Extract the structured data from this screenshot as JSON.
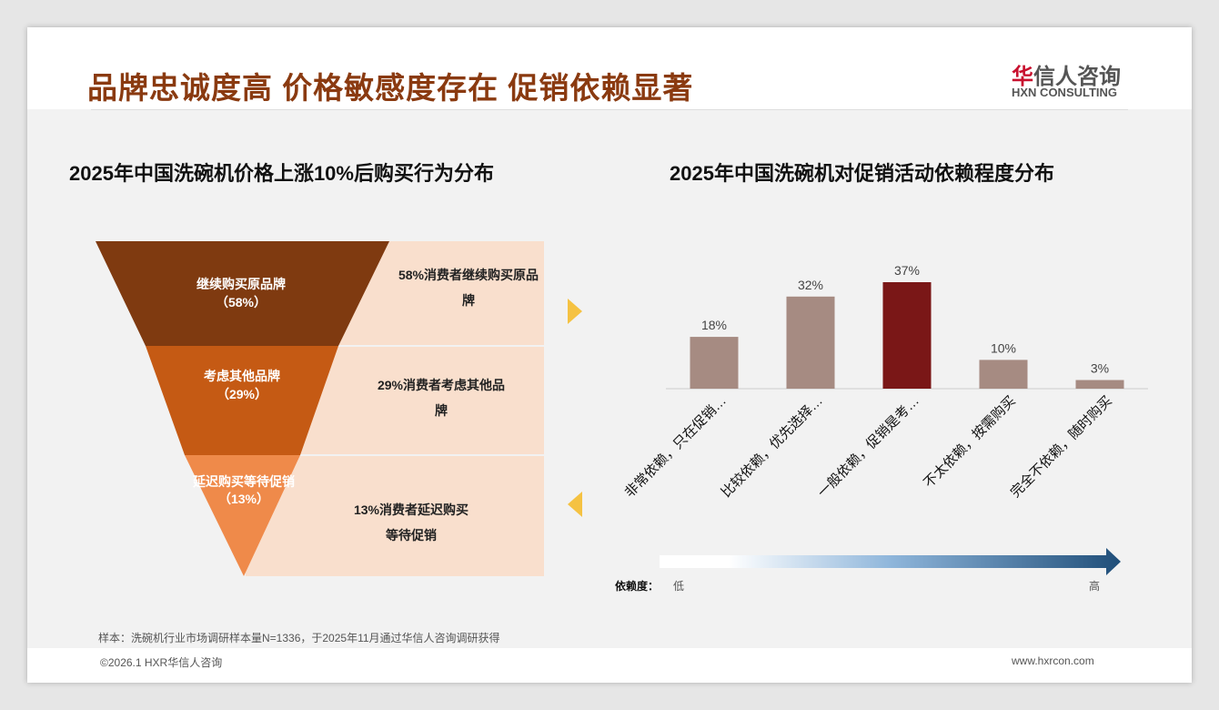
{
  "header": {
    "title": "品牌忠诚度高 价格敏感度存在 促销依赖显著",
    "logo_cn_red": "华",
    "logo_cn": "信人咨询",
    "logo_en": "HXN CONSULTING"
  },
  "left": {
    "title": "2025年中国洗碗机价格上涨10%后购买行为分布",
    "layers": [
      {
        "label": "继续购买原品牌",
        "pct": "（58%）",
        "desc": "58%消费者继续购买原品牌",
        "color": "#7f3a10"
      },
      {
        "label": "考虑其他品牌",
        "pct": "（29%）",
        "desc": "29%消费者考虑其他品牌",
        "color": "#c55a14"
      },
      {
        "label": "延迟购买等待促销",
        "pct": "（13%）",
        "desc": "13%消费者延迟购买等待促销",
        "color": "#ef8a4a"
      }
    ]
  },
  "chart_data": {
    "type": "bar",
    "title": "2025年中国洗碗机对促销活动依赖程度分布",
    "categories": [
      "非常依赖，只在促销…",
      "比较依赖，优先选择…",
      "一般依赖，促销是考…",
      "不太依赖，按需购买",
      "完全不依赖，随时购买"
    ],
    "values": [
      18,
      32,
      37,
      10,
      3
    ],
    "data_labels": [
      "18%",
      "32%",
      "37%",
      "10%",
      "3%"
    ],
    "ylim": [
      0,
      40
    ],
    "colors": [
      "#a68b82",
      "#a68b82",
      "#7a1717",
      "#a68b82",
      "#a68b82"
    ]
  },
  "scale": {
    "label": "依赖度：",
    "low": "低",
    "high": "高"
  },
  "footer": {
    "note": "样本：洗碗机行业市场调研样本量N=1336，于2025年11月通过华信人咨询调研获得",
    "copyright": "©2026.1 HXR华信人咨询",
    "url": "www.hxrcon.com"
  }
}
